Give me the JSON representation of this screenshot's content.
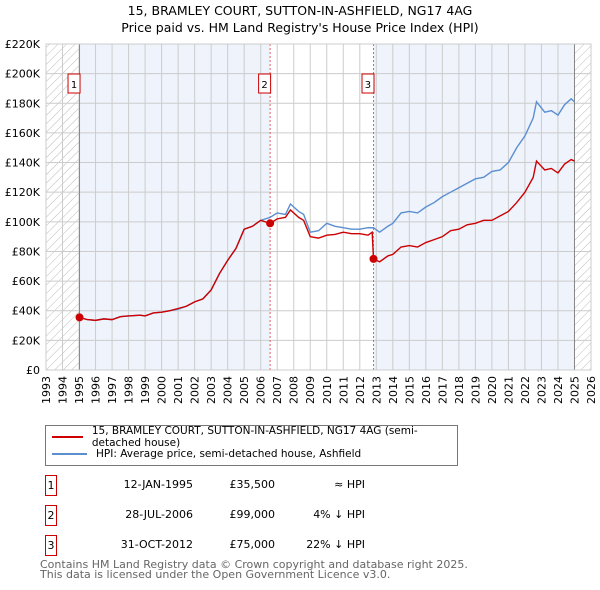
{
  "title": "15, BRAMLEY COURT, SUTTON-IN-ASHFIELD, NG17 4AG",
  "subtitle": "Price paid vs. HM Land Registry's House Price Index (HPI)",
  "chart_data": {
    "type": "line",
    "xlim": [
      1993,
      2026
    ],
    "ylim": [
      0,
      220000
    ],
    "yticks": [
      "£0",
      "£20K",
      "£40K",
      "£60K",
      "£80K",
      "£100K",
      "£120K",
      "£140K",
      "£160K",
      "£180K",
      "£200K",
      "£220K"
    ],
    "xticks": [
      "1993",
      "1994",
      "1995",
      "1996",
      "1997",
      "1998",
      "1999",
      "2000",
      "2001",
      "2002",
      "2003",
      "2004",
      "2005",
      "2006",
      "2007",
      "2008",
      "2009",
      "2010",
      "2011",
      "2012",
      "2013",
      "2014",
      "2015",
      "2016",
      "2017",
      "2018",
      "2019",
      "2020",
      "2021",
      "2022",
      "2023",
      "2024",
      "2025",
      "2026"
    ],
    "series": [
      {
        "name": "15, BRAMLEY COURT, SUTTON-IN-ASHFIELD, NG17 4AG (semi-detached house)",
        "color": "#cc0000",
        "x": [
          1995.03,
          1995.5,
          1996,
          1996.5,
          1997,
          1997.5,
          1998,
          1998.7,
          1999,
          1999.5,
          2000,
          2000.5,
          2001,
          2001.5,
          2002,
          2002.5,
          2003,
          2003.5,
          2004,
          2004.5,
          2005,
          2005.5,
          2006,
          2006.57,
          2007,
          2007.5,
          2007.8,
          2008.3,
          2008.6,
          2009,
          2009.5,
          2010,
          2010.5,
          2011,
          2011.5,
          2012,
          2012.5,
          2012.75,
          2012.83,
          2013.2,
          2013.7,
          2014,
          2014.5,
          2015,
          2015.5,
          2016,
          2016.5,
          2017,
          2017.5,
          2018,
          2018.5,
          2019,
          2019.5,
          2020,
          2020.5,
          2021,
          2021.5,
          2022,
          2022.5,
          2022.7,
          2023.2,
          2023.6,
          2024,
          2024.4,
          2024.8,
          2025
        ],
        "y": [
          35500,
          34000,
          33500,
          34500,
          34000,
          36000,
          36500,
          37000,
          36500,
          38500,
          39000,
          40000,
          41500,
          43000,
          46000,
          48000,
          54000,
          65000,
          74000,
          82000,
          95000,
          97000,
          101000,
          99000,
          102000,
          103000,
          108000,
          103000,
          101000,
          90000,
          89000,
          91000,
          91500,
          93000,
          92000,
          92000,
          91000,
          93000,
          75000,
          73000,
          77000,
          78000,
          83000,
          84000,
          83000,
          86000,
          88000,
          90000,
          94000,
          95000,
          98000,
          99000,
          101000,
          101000,
          104000,
          107000,
          113000,
          120000,
          130000,
          141000,
          135000,
          136000,
          133000,
          139000,
          142000,
          141000
        ]
      },
      {
        "name": "HPI: Average price, semi-detached house, Ashfield",
        "color": "#5b8fd0",
        "x": [
          1995.03,
          1995.5,
          1996,
          1996.5,
          1997,
          1997.5,
          1998,
          1998.7,
          1999,
          1999.5,
          2000,
          2000.5,
          2001,
          2001.5,
          2002,
          2002.5,
          2003,
          2003.5,
          2004,
          2004.5,
          2005,
          2005.5,
          2006,
          2006.57,
          2007,
          2007.5,
          2007.8,
          2008.3,
          2008.6,
          2009,
          2009.5,
          2010,
          2010.5,
          2011,
          2011.5,
          2012,
          2012.5,
          2012.75,
          2012.83,
          2013.2,
          2013.7,
          2014,
          2014.5,
          2015,
          2015.5,
          2016,
          2016.5,
          2017,
          2017.5,
          2018,
          2018.5,
          2019,
          2019.5,
          2020,
          2020.5,
          2021,
          2021.5,
          2022,
          2022.5,
          2022.7,
          2023.2,
          2023.6,
          2024,
          2024.4,
          2024.8,
          2025
        ],
        "y": [
          35500,
          34000,
          33500,
          34500,
          34000,
          36000,
          36500,
          37000,
          36500,
          38500,
          39000,
          40000,
          41000,
          43000,
          46000,
          48000,
          54000,
          65000,
          74000,
          82000,
          95000,
          97000,
          101000,
          103000,
          106000,
          105000,
          112000,
          107000,
          105000,
          93000,
          94000,
          99000,
          97000,
          96000,
          95000,
          95000,
          96000,
          96000,
          96000,
          93000,
          97000,
          99000,
          106000,
          107000,
          106000,
          110000,
          113000,
          117000,
          120000,
          123000,
          126000,
          129000,
          130000,
          134000,
          135000,
          140000,
          150000,
          158000,
          170000,
          181000,
          174000,
          175000,
          172000,
          179000,
          183000,
          181000
        ]
      }
    ],
    "sales": [
      {
        "label": "1",
        "x": 1995.03,
        "y": 35500
      },
      {
        "label": "2",
        "x": 2006.57,
        "y": 99000
      },
      {
        "label": "3",
        "x": 2012.83,
        "y": 75000
      }
    ]
  },
  "legend": {
    "item1": "15, BRAMLEY COURT, SUTTON-IN-ASHFIELD, NG17 4AG (semi-detached house)",
    "item2": "HPI: Average price, semi-detached house, Ashfield"
  },
  "transactions": [
    {
      "num": "1",
      "date": "12-JAN-1995",
      "price": "£35,500",
      "hpi": "≈ HPI"
    },
    {
      "num": "2",
      "date": "28-JUL-2006",
      "price": "£99,000",
      "hpi": "4% ↓ HPI"
    },
    {
      "num": "3",
      "date": "31-OCT-2012",
      "price": "£75,000",
      "hpi": "22% ↓ HPI"
    }
  ],
  "footer": {
    "line1": "Contains HM Land Registry data © Crown copyright and database right 2025.",
    "line2": "This data is licensed under the Open Government Licence v3.0."
  }
}
